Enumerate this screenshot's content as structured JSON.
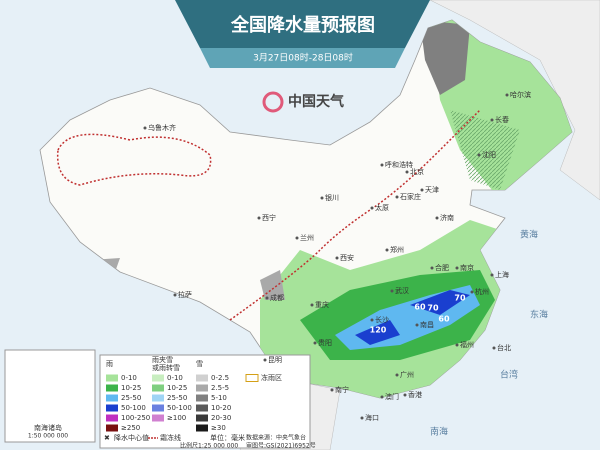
{
  "header": {
    "title": "全国降水量预报图",
    "subtitle": "3月27日08时-28日08时",
    "logo": "中国天气"
  },
  "cities": [
    "乌鲁木齐",
    "拉萨",
    "西宁",
    "兰州",
    "银川",
    "呼和浩特",
    "北京",
    "天津",
    "石家庄",
    "太原",
    "济南",
    "郑州",
    "西安",
    "成都",
    "重庆",
    "武汉",
    "合肥",
    "南京",
    "上海",
    "杭州",
    "长沙",
    "南昌",
    "福州",
    "贵阳",
    "昆明",
    "南宁",
    "广州",
    "香港",
    "澳门",
    "海口",
    "台北",
    "沈阳",
    "长春",
    "哈尔滨"
  ],
  "seas": [
    "黄海",
    "东海",
    "南海",
    "台湾"
  ],
  "rain_centers": [
    120,
    60,
    70,
    60,
    70
  ],
  "legend": {
    "rain": {
      "title": "雨",
      "items": [
        {
          "label": "0-10",
          "color": "#a6e39a"
        },
        {
          "label": "10-25",
          "color": "#3cb34a"
        },
        {
          "label": "25-50",
          "color": "#5fb8f0"
        },
        {
          "label": "50-100",
          "color": "#1a3fcf"
        },
        {
          "label": "100-250",
          "color": "#c030c0"
        },
        {
          "label": "≥250",
          "color": "#7a1010"
        }
      ]
    },
    "mixed": {
      "title": [
        "雨夹雪",
        "或雨转雪"
      ],
      "items": [
        {
          "label": "0-10",
          "color": "#c8eec0"
        },
        {
          "label": "10-25",
          "color": "#7fcf80"
        },
        {
          "label": "25-50",
          "color": "#9fd4f5"
        },
        {
          "label": "50-100",
          "color": "#6a80e0"
        },
        {
          "label": "≥100",
          "color": "#d080d0"
        }
      ]
    },
    "snow": {
      "title": "雪",
      "items": [
        {
          "label": "0-2.5",
          "color": "#d0d0d0"
        },
        {
          "label": "2.5-5",
          "color": "#a9a9a9"
        },
        {
          "label": "5-10",
          "color": "#808080"
        },
        {
          "label": "10-20",
          "color": "#5a5a5a"
        },
        {
          "label": "20-30",
          "color": "#3a3a3a"
        },
        {
          "label": "≥30",
          "color": "#1a1a1a"
        }
      ]
    },
    "zone": "冻雨区"
  },
  "footer": {
    "items": [
      "降水中心值",
      "霜冻线",
      "单位：毫米"
    ],
    "source": "数据来源：中央气象台",
    "scale": "比例尺1:25 000 000",
    "review": "审图号:GS(2021)6952号"
  },
  "inset": {
    "title": "南海诸岛",
    "scale": "1:50 000 000"
  }
}
